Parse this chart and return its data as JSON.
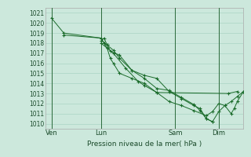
{
  "title": "Pression niveau de la mer( hPa )",
  "bg_color": "#cce8dc",
  "grid_color": "#aad4c4",
  "line_color": "#1a6b2a",
  "ylim": [
    1009.5,
    1021.5
  ],
  "yticks": [
    1010,
    1011,
    1012,
    1013,
    1014,
    1015,
    1016,
    1017,
    1018,
    1019,
    1020,
    1021
  ],
  "xtick_labels": [
    "Ven",
    "Lun",
    "Sam",
    "Dim"
  ],
  "xtick_positions": [
    1,
    9,
    21,
    28
  ],
  "xvlines": [
    1,
    9,
    21,
    28
  ],
  "xlim": [
    0,
    32
  ],
  "series": [
    [
      1020.5,
      1019.0,
      1018.5,
      1018.0,
      1017.5,
      1016.5,
      1016.0,
      1015.0,
      1014.5,
      1014.0,
      1013.1,
      1013.0,
      1013.2
    ],
    [
      1018.8,
      1018.5,
      1018.0,
      1017.8,
      1017.2,
      1016.8,
      1015.3,
      1014.8,
      1014.5,
      1013.2,
      1012.5,
      1011.8,
      1011.5,
      1010.5,
      1010.2
    ],
    [
      1018.2,
      1018.5,
      1017.8,
      1017.3,
      1016.5,
      1015.3,
      1014.5,
      1013.5,
      1013.3,
      1012.6,
      1011.9,
      1011.3,
      1010.5,
      1010.2,
      1011.2,
      1011.8,
      1012.2,
      1012.7,
      1013.2
    ],
    [
      1018.0,
      1017.5,
      1017.0,
      1015.5,
      1014.2,
      1013.8,
      1013.1,
      1012.2,
      1011.8,
      1011.3,
      1010.8,
      1011.2,
      1012.0,
      1011.8,
      1011.0,
      1011.5,
      1012.2,
      1013.2
    ]
  ],
  "series_x": [
    [
      1,
      3,
      9,
      9.5,
      10.0,
      10.5,
      11.0,
      12.0,
      14.0,
      16.0,
      18.0,
      29.5,
      31.0
    ],
    [
      3,
      9,
      9.5,
      10.0,
      10.5,
      12.0,
      14.0,
      16.0,
      18.0,
      20.0,
      22.0,
      24.0,
      25.0,
      26.0,
      27.0
    ],
    [
      9,
      9.5,
      10.0,
      11.0,
      12.0,
      14.0,
      16.0,
      18.0,
      20.0,
      22.0,
      24.0,
      25.0,
      26.0,
      27.0,
      28.0,
      29.0,
      30.0,
      31.0,
      32.0
    ],
    [
      9,
      10.0,
      11.0,
      13.0,
      15.0,
      16.0,
      18.0,
      20.0,
      22.0,
      24.0,
      26.0,
      27.0,
      28.0,
      29.0,
      30.0,
      30.5,
      31.0,
      32.0
    ]
  ]
}
